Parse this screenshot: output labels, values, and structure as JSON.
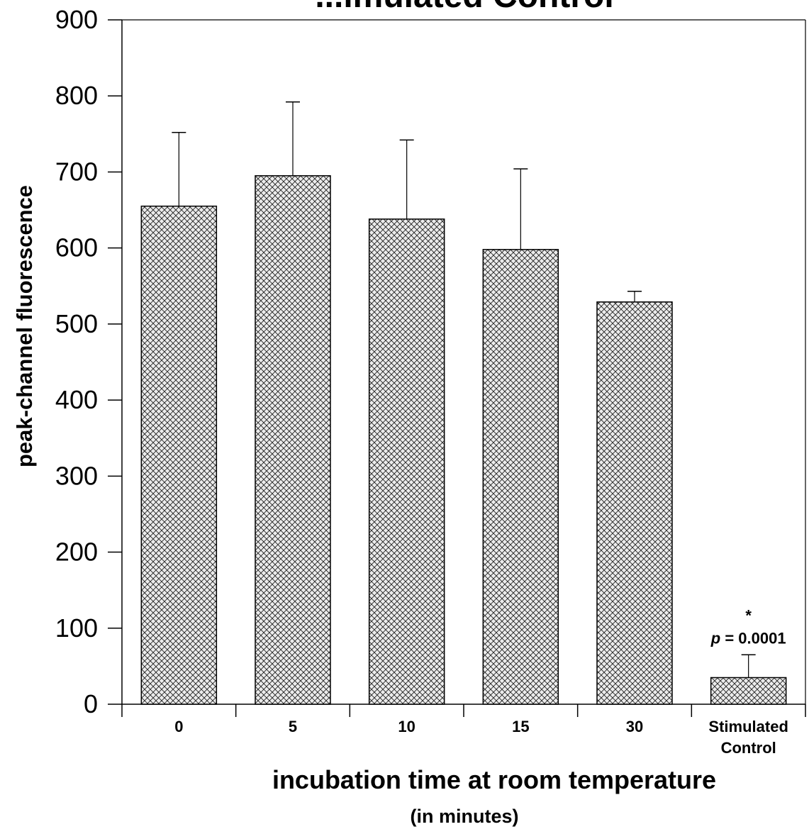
{
  "chart_data": {
    "type": "bar",
    "title": "...imulated Control",
    "xlabel": "incubation time at room temperature",
    "xlabel_sub": "(in minutes)",
    "ylabel": "peak-channel fluorescence",
    "ylim": [
      0,
      900
    ],
    "yticks": [
      0,
      100,
      200,
      300,
      400,
      500,
      600,
      700,
      800,
      900
    ],
    "categories": [
      [
        "0"
      ],
      [
        "5"
      ],
      [
        "10"
      ],
      [
        "15"
      ],
      [
        "30"
      ],
      [
        "Stimulated",
        "Control"
      ]
    ],
    "values": [
      655,
      695,
      638,
      598,
      529,
      35
    ],
    "error_bars": [
      97,
      97,
      104,
      106,
      14,
      30
    ],
    "bar_fill": "crosshatch",
    "annotations": [
      {
        "category_index": 5,
        "lines": [
          "*",
          "p = 0.0001"
        ]
      }
    ],
    "grid": false,
    "colors": {
      "bar_fill": "#ececec",
      "hatch": "#222222",
      "axis": "#000000"
    }
  }
}
